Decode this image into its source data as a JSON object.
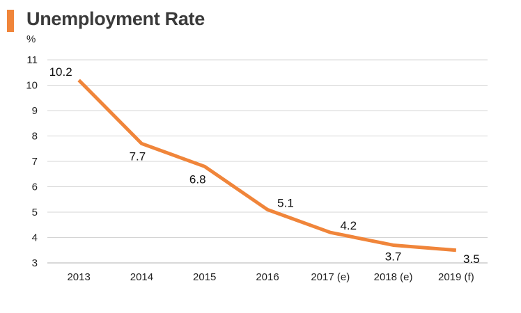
{
  "chart_data": {
    "type": "line",
    "title": "Unemployment Rate",
    "unit_label": "%",
    "categories": [
      "2013",
      "2014",
      "2015",
      "2016",
      "2017 (e)",
      "2018 (e)",
      "2019 (f)"
    ],
    "series": [
      {
        "values": [
          10.2,
          7.7,
          6.8,
          5.1,
          4.2,
          3.7,
          3.5
        ],
        "color": "#f0853a"
      }
    ],
    "ylim": [
      3,
      11
    ],
    "yticks": [
      3,
      4,
      5,
      6,
      7,
      8,
      9,
      10,
      11
    ],
    "grid": true,
    "legend": "none",
    "data_labels": [
      "10.2",
      "7.7",
      "6.8",
      "5.1",
      "4.2",
      "3.7",
      "3.5"
    ]
  },
  "colors": {
    "accent": "#f0853a",
    "grid": "#d4d4d4"
  }
}
